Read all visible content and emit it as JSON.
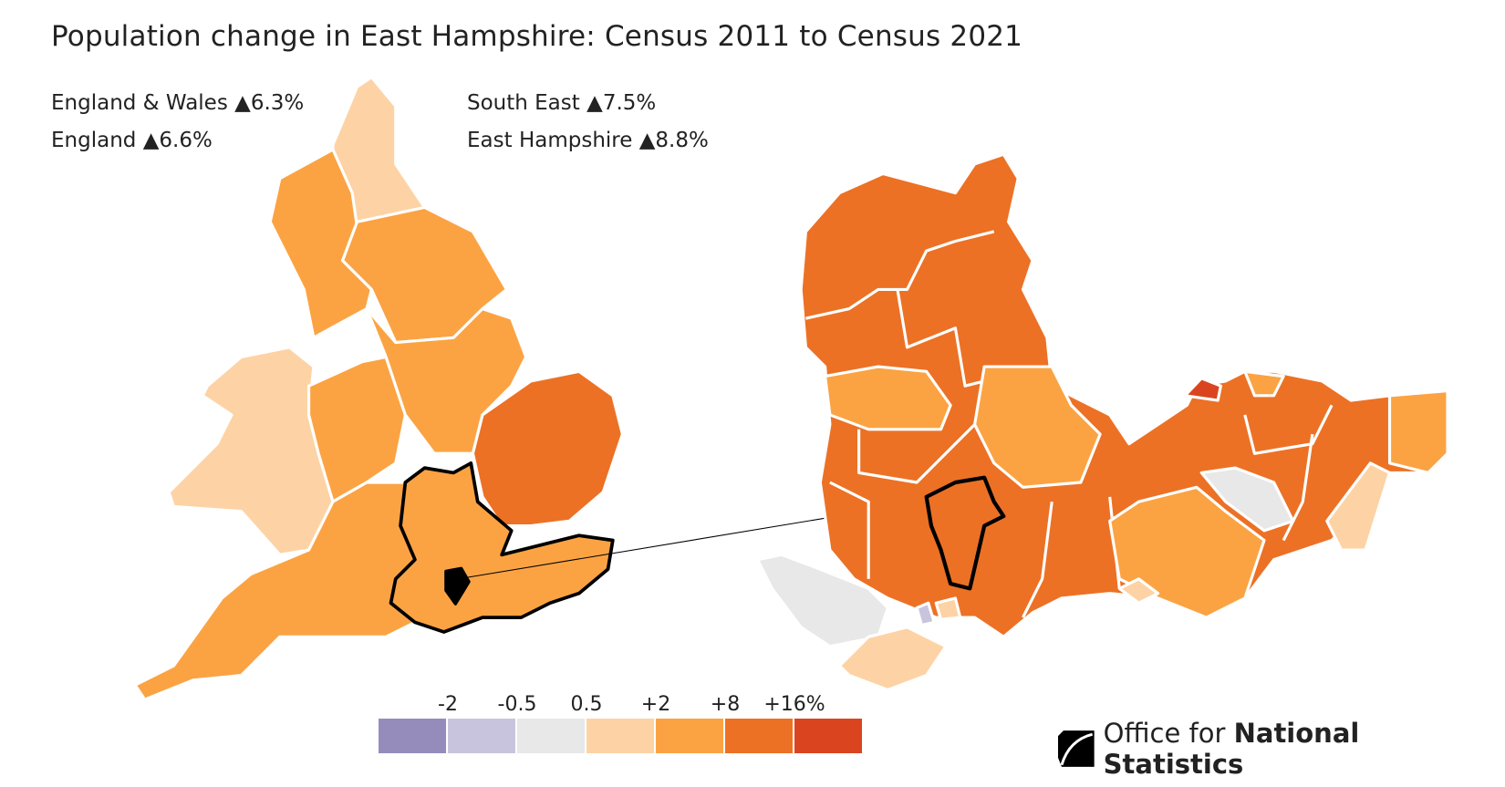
{
  "title": "Population change in East Hampshire: Census 2011 to Census 2021",
  "stats": [
    {
      "label": "England & Wales",
      "arrow": "▲",
      "value": "6.3%"
    },
    {
      "label": "England",
      "arrow": "▲",
      "value": "6.6%"
    },
    {
      "label": "South East",
      "arrow": "▲",
      "value": "7.5%"
    },
    {
      "label": "East Hampshire",
      "arrow": "▲",
      "value": "8.8%"
    }
  ],
  "legend": {
    "labels": [
      "-2",
      "-0.5",
      "0.5",
      "+2",
      "+8",
      "+16%"
    ],
    "colors": [
      "#968cbc",
      "#c9c4dd",
      "#e8e8e8",
      "#fdd3a5",
      "#fba343",
      "#ec7125",
      "#da4520"
    ]
  },
  "colors": {
    "highlight_outline": "#000000",
    "boundary": "#ffffff",
    "no_change": "#e8e8e8"
  },
  "logo": {
    "light": "Office for",
    "bold": "National Statistics",
    "icon": "ons-logo-icon"
  }
}
